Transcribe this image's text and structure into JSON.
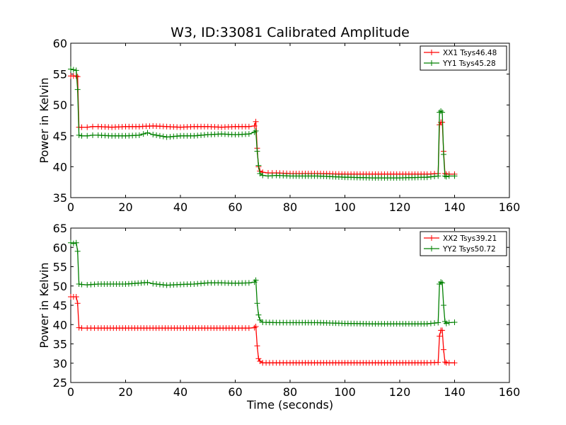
{
  "figure": {
    "title": "W3, ID:33081 Calibrated Amplitude",
    "xlabel": "Time (seconds)"
  },
  "chart_data": [
    {
      "type": "line",
      "title": "W3, ID:33081 Calibrated Amplitude",
      "xlabel": "",
      "ylabel": "Power in Kelvin",
      "xlim": [
        0,
        160
      ],
      "ylim": [
        35,
        60
      ],
      "xticks": [
        0,
        20,
        40,
        60,
        80,
        100,
        120,
        140,
        160
      ],
      "yticks": [
        35,
        40,
        45,
        50,
        55,
        60
      ],
      "legend_position": "top-right",
      "grid": false,
      "series": [
        {
          "name": "XX1 Tsys46.48",
          "color": "#ff0000",
          "marker": "+",
          "x": [
            0,
            1,
            2,
            2.5,
            3,
            4,
            6,
            8,
            10,
            15,
            20,
            25,
            30,
            35,
            40,
            45,
            50,
            55,
            60,
            65,
            67,
            67.5,
            68,
            68.5,
            69,
            70,
            72,
            75,
            80,
            90,
            100,
            110,
            120,
            130,
            134,
            134.5,
            135,
            135.5,
            136,
            136.5,
            137,
            138,
            140
          ],
          "y": [
            54.7,
            54.7,
            54.7,
            54.6,
            46.4,
            46.4,
            46.4,
            46.5,
            46.5,
            46.4,
            46.5,
            46.5,
            46.6,
            46.5,
            46.4,
            46.5,
            46.5,
            46.4,
            46.5,
            46.5,
            46.6,
            47.3,
            43.0,
            40.0,
            39.3,
            39.1,
            39.0,
            39.0,
            38.9,
            38.9,
            38.8,
            38.8,
            38.8,
            38.8,
            38.9,
            46.8,
            47.2,
            47.2,
            42.5,
            38.9,
            38.8,
            38.8,
            38.8
          ]
        },
        {
          "name": "YY1 Tsys45.28",
          "color": "#008000",
          "marker": "+",
          "x": [
            0,
            1,
            2,
            2.5,
            3,
            4,
            6,
            8,
            10,
            15,
            20,
            25,
            28,
            30,
            35,
            40,
            45,
            50,
            55,
            60,
            65,
            67,
            67.5,
            68,
            68.5,
            69,
            70,
            72,
            75,
            80,
            90,
            100,
            110,
            120,
            130,
            134,
            134.5,
            135,
            135.5,
            136,
            136.5,
            137,
            138,
            140
          ],
          "y": [
            55.8,
            55.7,
            55.6,
            52.5,
            45.1,
            45.0,
            45.0,
            45.1,
            45.1,
            45.0,
            45.0,
            45.1,
            45.5,
            45.2,
            44.8,
            45.0,
            45.0,
            45.2,
            45.3,
            45.2,
            45.3,
            45.6,
            45.8,
            42.5,
            40.2,
            38.9,
            38.6,
            38.5,
            38.6,
            38.5,
            38.5,
            38.3,
            38.2,
            38.2,
            38.3,
            38.5,
            48.8,
            49.0,
            48.8,
            42.0,
            38.5,
            38.4,
            38.5,
            38.5
          ]
        }
      ]
    },
    {
      "type": "line",
      "title": "",
      "xlabel": "Time (seconds)",
      "ylabel": "Power in Kelvin",
      "xlim": [
        0,
        160
      ],
      "ylim": [
        25,
        65
      ],
      "xticks": [
        0,
        20,
        40,
        60,
        80,
        100,
        120,
        140,
        160
      ],
      "yticks": [
        25,
        30,
        35,
        40,
        45,
        50,
        55,
        60,
        65
      ],
      "legend_position": "top-right",
      "grid": false,
      "series": [
        {
          "name": "XX2 Tsys39.21",
          "color": "#ff0000",
          "marker": "+",
          "x": [
            0,
            1,
            2,
            2.5,
            3,
            4,
            6,
            10,
            20,
            30,
            40,
            50,
            60,
            65,
            67,
            67.5,
            68,
            68.5,
            69,
            70,
            75,
            80,
            90,
            100,
            110,
            120,
            130,
            134,
            134.5,
            135,
            135.5,
            136,
            136.5,
            137,
            138,
            140
          ],
          "y": [
            47.2,
            47.2,
            47.2,
            45.5,
            39.2,
            39.1,
            39.1,
            39.1,
            39.1,
            39.1,
            39.1,
            39.1,
            39.1,
            39.1,
            39.2,
            39.5,
            34.5,
            31.2,
            30.5,
            30.1,
            30.1,
            30.1,
            30.1,
            30.1,
            30.1,
            30.1,
            30.1,
            30.2,
            37.0,
            38.5,
            38.5,
            33.5,
            30.3,
            30.1,
            30.1,
            30.1
          ]
        },
        {
          "name": "YY2 Tsys50.72",
          "color": "#008000",
          "marker": "+",
          "x": [
            0,
            1,
            2,
            2.5,
            3,
            4,
            6,
            10,
            20,
            28,
            30,
            35,
            40,
            45,
            50,
            55,
            60,
            65,
            67,
            67.5,
            68,
            68.5,
            69,
            70,
            75,
            80,
            90,
            100,
            110,
            120,
            130,
            134,
            134.5,
            135,
            135.5,
            136,
            136.5,
            137,
            138,
            140
          ],
          "y": [
            61.2,
            61.0,
            61.2,
            59.0,
            50.5,
            50.4,
            50.3,
            50.5,
            50.5,
            50.9,
            50.6,
            50.2,
            50.4,
            50.5,
            50.8,
            50.8,
            50.7,
            50.8,
            51.0,
            51.5,
            45.5,
            42.5,
            41.2,
            40.6,
            40.5,
            40.5,
            40.5,
            40.3,
            40.2,
            40.2,
            40.2,
            40.5,
            50.5,
            51.0,
            50.8,
            45.0,
            40.8,
            40.3,
            40.5,
            40.6
          ]
        }
      ]
    }
  ]
}
